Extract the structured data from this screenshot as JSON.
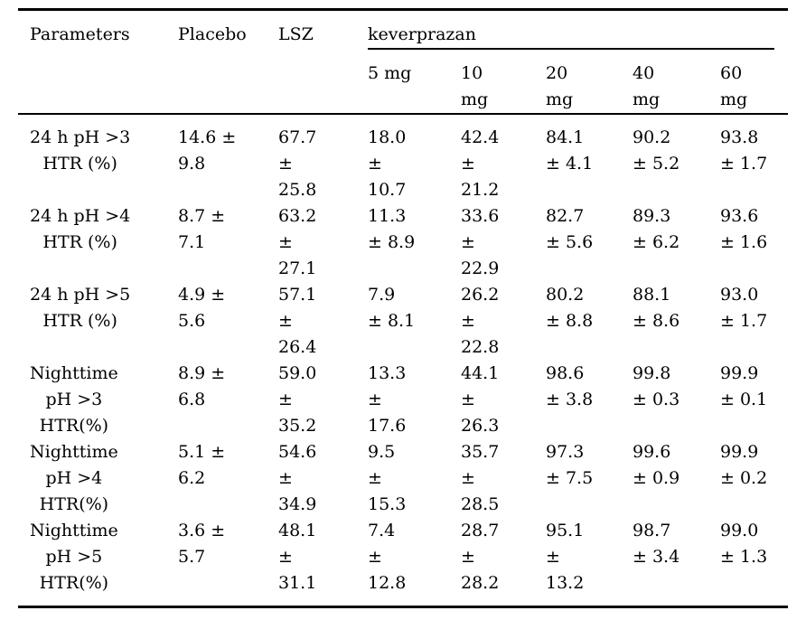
{
  "table": {
    "header": {
      "parameters": "Parameters",
      "placebo": "Placebo",
      "lsz": "LSZ",
      "keverprazan": "keverprazan",
      "doses": [
        "5 mg",
        "10\nmg",
        "20\nmg",
        "40\nmg",
        "60\nmg"
      ]
    },
    "rows": [
      {
        "parameter": "24 h pH >3\nHTR (%)",
        "placebo": "14.6 ±\n9.8",
        "lsz": "67.7\n±\n25.8",
        "d5": "18.0\n±\n10.7",
        "d10": "42.4\n±\n21.2",
        "d20": "84.1\n± 4.1",
        "d40": "90.2\n± 5.2",
        "d60": "93.8\n± 1.7"
      },
      {
        "parameter": "24 h pH >4\nHTR (%)",
        "placebo": "8.7 ±\n7.1",
        "lsz": "63.2\n±\n27.1",
        "d5": "11.3\n± 8.9",
        "d10": "33.6\n±\n22.9",
        "d20": "82.7\n± 5.6",
        "d40": "89.3\n± 6.2",
        "d60": "93.6\n± 1.6"
      },
      {
        "parameter": "24 h pH >5\nHTR (%)",
        "placebo": "4.9 ±\n5.6",
        "lsz": "57.1\n±\n26.4",
        "d5": "7.9\n± 8.1",
        "d10": "26.2\n±\n22.8",
        "d20": "80.2\n± 8.8",
        "d40": "88.1\n± 8.6",
        "d60": "93.0\n± 1.7"
      },
      {
        "parameter": "Nighttime\npH >3\nHTR(%)",
        "placebo": "8.9 ±\n6.8",
        "lsz": "59.0\n±\n35.2",
        "d5": "13.3\n±\n17.6",
        "d10": "44.1\n±\n26.3",
        "d20": "98.6\n± 3.8",
        "d40": "99.8\n± 0.3",
        "d60": "99.9\n± 0.1"
      },
      {
        "parameter": "Nighttime\npH >4\nHTR(%)",
        "placebo": "5.1 ±\n6.2",
        "lsz": "54.6\n±\n34.9",
        "d5": "9.5\n±\n15.3",
        "d10": "35.7\n±\n28.5",
        "d20": "97.3\n± 7.5",
        "d40": "99.6\n± 0.9",
        "d60": "99.9\n± 0.2"
      },
      {
        "parameter": "Nighttime\npH >5\nHTR(%)",
        "placebo": "3.6 ±\n5.7",
        "lsz": "48.1\n±\n31.1",
        "d5": "7.4\n±\n12.8",
        "d10": "28.7\n±\n28.2",
        "d20": "95.1\n±\n13.2",
        "d40": "98.7\n± 3.4",
        "d60": "99.0\n± 1.3"
      }
    ]
  }
}
